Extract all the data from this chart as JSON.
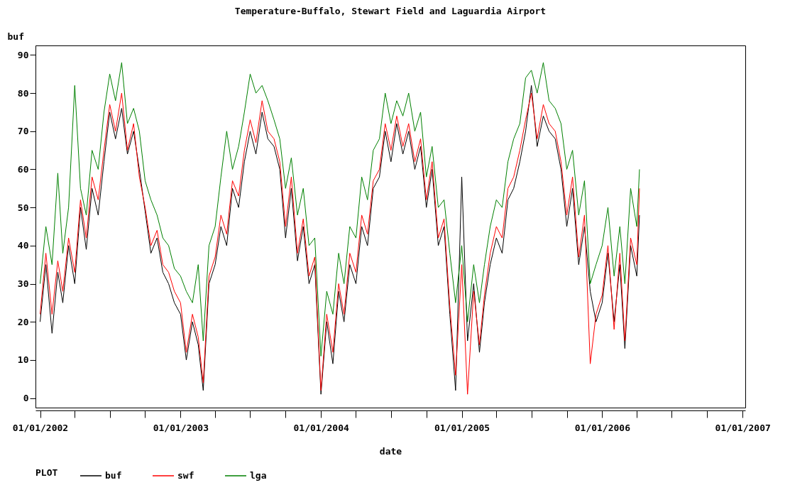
{
  "chart_data": {
    "type": "line",
    "title": "Temperature-Buffalo, Stewart Field and Laguardia Airport",
    "xlabel": "date",
    "ylabel": "buf",
    "legend_title": "PLOT",
    "legend": "bottom",
    "grid": false,
    "x": [
      "2002-01-01",
      "2002-01-16",
      "2002-02-01",
      "2002-02-16",
      "2002-03-01",
      "2002-03-16",
      "2002-04-01",
      "2002-04-16",
      "2002-05-01",
      "2002-05-16",
      "2002-06-01",
      "2002-06-16",
      "2002-07-01",
      "2002-07-16",
      "2002-08-01",
      "2002-08-16",
      "2002-09-01",
      "2002-09-16",
      "2002-10-01",
      "2002-10-16",
      "2002-11-01",
      "2002-11-16",
      "2002-12-01",
      "2002-12-16",
      "2003-01-01",
      "2003-01-16",
      "2003-02-01",
      "2003-02-16",
      "2003-03-01",
      "2003-03-16",
      "2003-04-01",
      "2003-04-16",
      "2003-05-01",
      "2003-05-16",
      "2003-06-01",
      "2003-06-16",
      "2003-07-01",
      "2003-07-16",
      "2003-08-01",
      "2003-08-16",
      "2003-09-01",
      "2003-09-16",
      "2003-10-01",
      "2003-10-16",
      "2003-11-01",
      "2003-11-16",
      "2003-12-01",
      "2003-12-16",
      "2004-01-01",
      "2004-01-16",
      "2004-02-01",
      "2004-02-16",
      "2004-03-01",
      "2004-03-16",
      "2004-04-01",
      "2004-04-16",
      "2004-05-01",
      "2004-05-16",
      "2004-06-01",
      "2004-06-16",
      "2004-07-01",
      "2004-07-16",
      "2004-08-01",
      "2004-08-16",
      "2004-09-01",
      "2004-09-16",
      "2004-10-01",
      "2004-10-16",
      "2004-11-01",
      "2004-11-16",
      "2004-12-01",
      "2004-12-16",
      "2005-01-01",
      "2005-01-16",
      "2005-02-01",
      "2005-02-16",
      "2005-03-01",
      "2005-03-16",
      "2005-04-01",
      "2005-04-16",
      "2005-05-01",
      "2005-05-16",
      "2005-06-01",
      "2005-06-16",
      "2005-07-01",
      "2005-07-16",
      "2005-08-01",
      "2005-08-16",
      "2005-09-01",
      "2005-09-16",
      "2005-10-01",
      "2005-10-16",
      "2005-11-01",
      "2005-11-16",
      "2005-12-01",
      "2005-12-16",
      "2006-01-01",
      "2006-01-16",
      "2006-02-01",
      "2006-02-16",
      "2006-03-01",
      "2006-03-16",
      "2006-04-01",
      "2006-04-08"
    ],
    "series": [
      {
        "name": "buf",
        "color": "#000000",
        "values": [
          20,
          35,
          17,
          33,
          25,
          40,
          30,
          50,
          39,
          55,
          48,
          62,
          75,
          68,
          76,
          64,
          70,
          60,
          49,
          38,
          42,
          33,
          30,
          25,
          22,
          10,
          20,
          14,
          2,
          30,
          35,
          45,
          40,
          55,
          50,
          62,
          70,
          64,
          75,
          68,
          66,
          60,
          42,
          55,
          36,
          45,
          30,
          35,
          1,
          20,
          9,
          28,
          20,
          35,
          30,
          45,
          40,
          55,
          58,
          70,
          62,
          72,
          64,
          70,
          60,
          66,
          50,
          60,
          40,
          45,
          22,
          2,
          58,
          15,
          30,
          12,
          25,
          35,
          42,
          38,
          52,
          55,
          62,
          70,
          82,
          66,
          74,
          70,
          68,
          60,
          45,
          55,
          35,
          45,
          28,
          20,
          25,
          38,
          20,
          35,
          13,
          40,
          32,
          48
        ]
      },
      {
        "name": "swf",
        "color": "#ff0000",
        "values": [
          22,
          38,
          22,
          36,
          28,
          42,
          33,
          52,
          42,
          58,
          52,
          65,
          77,
          70,
          80,
          65,
          72,
          58,
          50,
          40,
          44,
          35,
          33,
          28,
          25,
          12,
          22,
          16,
          4,
          32,
          37,
          48,
          43,
          57,
          53,
          65,
          73,
          67,
          78,
          70,
          68,
          62,
          45,
          58,
          38,
          47,
          32,
          37,
          2,
          22,
          12,
          30,
          22,
          38,
          33,
          48,
          43,
          57,
          60,
          72,
          65,
          74,
          66,
          72,
          62,
          68,
          52,
          62,
          42,
          47,
          24,
          6,
          35,
          1,
          28,
          14,
          27,
          38,
          45,
          42,
          55,
          58,
          65,
          73,
          80,
          68,
          77,
          72,
          70,
          62,
          48,
          58,
          37,
          48,
          9,
          22,
          27,
          40,
          18,
          38,
          15,
          42,
          35,
          55
        ]
      },
      {
        "name": "lga",
        "color": "#008000",
        "values": [
          30,
          45,
          35,
          59,
          38,
          50,
          82,
          55,
          48,
          65,
          60,
          75,
          85,
          78,
          88,
          72,
          76,
          70,
          57,
          52,
          48,
          42,
          40,
          34,
          32,
          28,
          25,
          35,
          15,
          40,
          45,
          58,
          70,
          60,
          66,
          75,
          85,
          80,
          82,
          78,
          73,
          68,
          55,
          63,
          48,
          55,
          40,
          42,
          11,
          28,
          22,
          38,
          30,
          45,
          42,
          58,
          52,
          65,
          68,
          80,
          72,
          78,
          74,
          80,
          70,
          75,
          58,
          66,
          50,
          52,
          38,
          25,
          40,
          20,
          35,
          25,
          35,
          45,
          52,
          50,
          62,
          68,
          72,
          84,
          86,
          80,
          88,
          78,
          76,
          72,
          60,
          65,
          48,
          57,
          30,
          35,
          40,
          50,
          32,
          45,
          30,
          55,
          45,
          60
        ]
      }
    ],
    "xlim": [
      "2001-12-20",
      "2007-01-08"
    ],
    "xticks": [
      {
        "value": "2002-01-01",
        "label": "01/01/2002"
      },
      {
        "value": "2002-04-01",
        "label": null
      },
      {
        "value": "2002-07-01",
        "label": null
      },
      {
        "value": "2002-10-01",
        "label": null
      },
      {
        "value": "2003-01-01",
        "label": "01/01/2003"
      },
      {
        "value": "2003-04-01",
        "label": null
      },
      {
        "value": "2003-07-01",
        "label": null
      },
      {
        "value": "2003-10-01",
        "label": null
      },
      {
        "value": "2004-01-01",
        "label": "01/01/2004"
      },
      {
        "value": "2004-04-01",
        "label": null
      },
      {
        "value": "2004-07-01",
        "label": null
      },
      {
        "value": "2004-10-01",
        "label": null
      },
      {
        "value": "2005-01-01",
        "label": "01/01/2005"
      },
      {
        "value": "2005-04-01",
        "label": null
      },
      {
        "value": "2005-07-01",
        "label": null
      },
      {
        "value": "2005-10-01",
        "label": null
      },
      {
        "value": "2006-01-01",
        "label": "01/01/2006"
      },
      {
        "value": "2006-04-01",
        "label": null
      },
      {
        "value": "2006-07-01",
        "label": null
      },
      {
        "value": "2006-10-01",
        "label": null
      },
      {
        "value": "2007-01-01",
        "label": "01/01/2007"
      }
    ],
    "ylim": [
      -2.5,
      92.5
    ],
    "yticks": [
      0,
      10,
      20,
      30,
      40,
      50,
      60,
      70,
      80,
      90
    ]
  }
}
